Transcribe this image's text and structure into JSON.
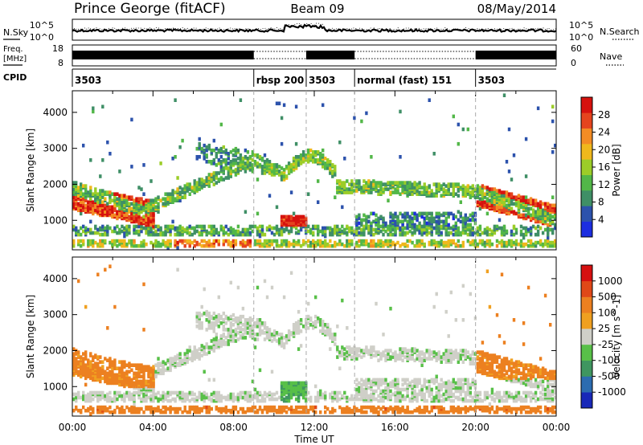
{
  "header": {
    "station": "Prince George (fitACF)",
    "beam": "Beam 09",
    "date": "08/May/2014"
  },
  "top_panels": {
    "noise_left_label": "N.Sky",
    "noise_right_label": "N.Search",
    "noise_left_ticks": [
      "10^5",
      "10^0"
    ],
    "noise_right_ticks": [
      "10^5",
      "10^0"
    ],
    "freq_label_line1": "Freq.",
    "freq_label_line2": "[MHz]",
    "freq_ticks": [
      "18",
      "8"
    ],
    "nave_label": "Nave",
    "nave_ticks": [
      "60",
      "0"
    ],
    "cpid_label": "CPID",
    "cpid_segments": [
      {
        "label": "3503",
        "start_h": 0,
        "end_h": 9
      },
      {
        "label": "rbsp 200",
        "start_h": 9,
        "end_h": 11.6
      },
      {
        "label": "3503",
        "start_h": 11.6,
        "end_h": 14
      },
      {
        "label": "normal (fast) 151",
        "start_h": 14,
        "end_h": 20
      },
      {
        "label": "3503",
        "start_h": 20,
        "end_h": 24
      }
    ]
  },
  "colors": {
    "power_scale": [
      "#1c2ee0",
      "#2c52ac",
      "#3f8f66",
      "#52b748",
      "#9ccd28",
      "#f0b81c",
      "#f38c24",
      "#e5441e",
      "#d6120e"
    ],
    "velocity_scale": [
      "#1828b8",
      "#2c6cb0",
      "#3f9660",
      "#58c048",
      "#cfcfc8",
      "#f0a020",
      "#ec8020",
      "#e04818",
      "#d61010"
    ]
  },
  "chart_data": [
    {
      "type": "heatmap",
      "name": "power",
      "xlabel": "",
      "ylabel": "Slant Range [km]",
      "xlim": [
        0,
        24
      ],
      "ylim": [
        180,
        4600
      ],
      "yticks": [
        "1000",
        "2000",
        "3000",
        "4000"
      ],
      "colorbar_label": "Power [dB]",
      "colorbar_ticks": [
        "4",
        "8",
        "12",
        "16",
        "20",
        "24",
        "28"
      ],
      "clim": [
        0,
        30
      ]
    },
    {
      "type": "heatmap",
      "name": "velocity",
      "xlabel": "Time UT",
      "ylabel": "Slant Range [km]",
      "xlim": [
        0,
        24
      ],
      "ylim": [
        180,
        4600
      ],
      "xticks": [
        "00:00",
        "04:00",
        "08:00",
        "12:00",
        "16:00",
        "20:00",
        "00:00"
      ],
      "yticks": [
        "1000",
        "2000",
        "3000",
        "4000"
      ],
      "colorbar_label": "Velocity [m s^-1]",
      "colorbar_ticks": [
        "1000",
        "500",
        "100",
        "25",
        "-25",
        "-100",
        "-500",
        "-1000"
      ]
    }
  ]
}
